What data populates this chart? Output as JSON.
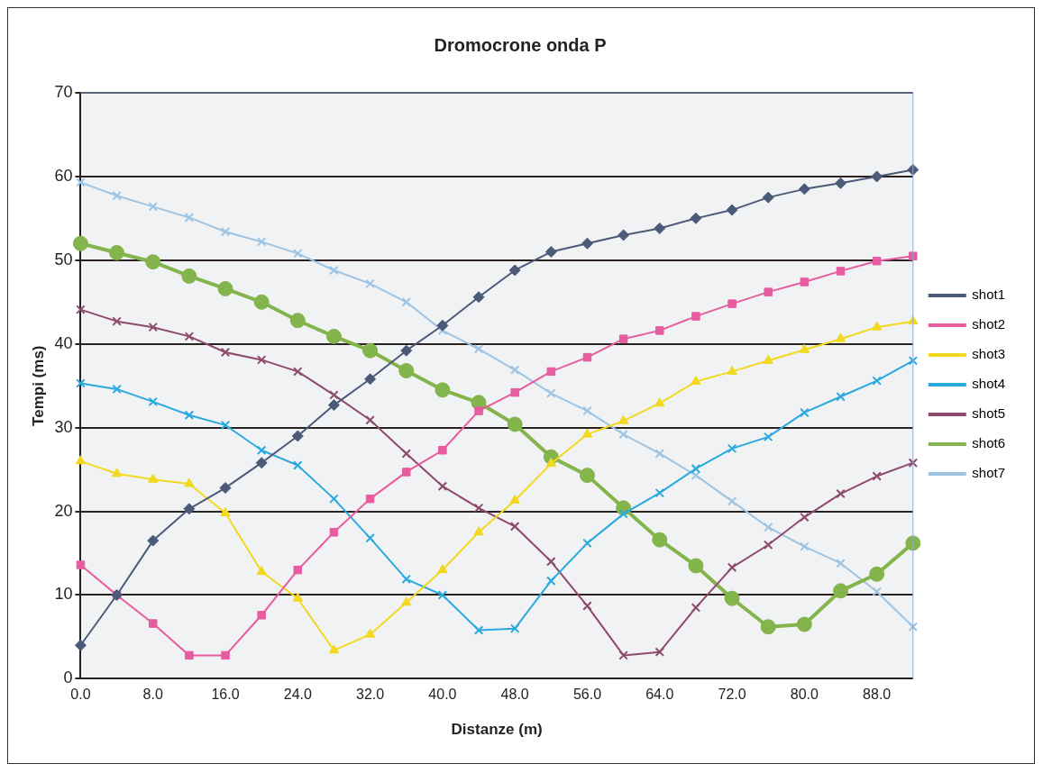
{
  "chart_data": {
    "type": "line",
    "title": "Dromocrone onda P",
    "xlabel": "Distanze (m)",
    "ylabel": "Tempi (ms)",
    "categories": [
      "0.0",
      null,
      "8.0",
      null,
      "16.0",
      null,
      "24.0",
      null,
      "32.0",
      null,
      "40.0",
      null,
      "48.0",
      null,
      "56.0",
      null,
      "64.0",
      null,
      "72.0",
      null,
      "80.0",
      null,
      "88.0",
      null
    ],
    "ylim": [
      0,
      70
    ],
    "yticks": [
      0,
      10,
      20,
      30,
      40,
      50,
      60,
      70
    ],
    "grid": "y",
    "legend": "right",
    "series": [
      {
        "name": "shot1",
        "color": "#4a5a78",
        "marker": "diamond",
        "values": [
          4,
          10,
          16.5,
          20.3,
          22.8,
          25.8,
          29,
          32.7,
          35.8,
          39.2,
          42.2,
          45.6,
          48.8,
          51,
          52,
          53,
          53.8,
          55,
          56,
          57.5,
          58.5,
          59.2,
          60,
          60.8
        ]
      },
      {
        "name": "shot2",
        "color": "#e75b9f",
        "marker": "square",
        "values": [
          13.6,
          10,
          6.6,
          2.8,
          2.8,
          7.6,
          13,
          17.5,
          21.5,
          24.7,
          27.3,
          32,
          34.2,
          36.7,
          38.4,
          40.6,
          41.6,
          43.3,
          44.8,
          46.2,
          47.4,
          48.7,
          49.9,
          50.5
        ]
      },
      {
        "name": "shot3",
        "color": "#f2d81e",
        "marker": "triangle",
        "values": [
          26,
          24.5,
          23.8,
          23.3,
          19.8,
          12.8,
          9.6,
          3.4,
          5.3,
          9.1,
          13,
          17.5,
          21.3,
          25.7,
          29.2,
          30.8,
          32.9,
          35.5,
          36.7,
          38,
          39.3,
          40.6,
          42,
          42.7
        ]
      },
      {
        "name": "shot4",
        "color": "#2aa9df",
        "marker": "cross",
        "values": [
          35.3,
          34.6,
          33.1,
          31.5,
          30.3,
          27.3,
          25.5,
          21.5,
          16.8,
          11.9,
          10,
          5.8,
          6,
          11.7,
          16.2,
          19.7,
          22.2,
          25.1,
          27.5,
          28.9,
          31.8,
          33.7,
          35.6,
          38
        ]
      },
      {
        "name": "shot5",
        "color": "#8e4a6c",
        "marker": "cross",
        "values": [
          44.1,
          42.7,
          42,
          40.9,
          39,
          38.1,
          36.7,
          33.9,
          30.9,
          26.9,
          23,
          20.4,
          18.2,
          14,
          8.7,
          2.8,
          3.2,
          8.5,
          13.3,
          16,
          19.3,
          22.1,
          24.2,
          25.8
        ]
      },
      {
        "name": "shot6",
        "color": "#84b44c",
        "marker": "circle",
        "values": [
          52,
          50.9,
          49.8,
          48.1,
          46.6,
          45,
          42.8,
          40.9,
          39.2,
          36.8,
          34.5,
          33,
          30.4,
          26.5,
          24.3,
          20.4,
          16.6,
          13.5,
          9.6,
          6.2,
          6.5,
          10.5,
          12.5,
          16.2
        ]
      },
      {
        "name": "shot7",
        "color": "#9dc4e3",
        "marker": "cross",
        "values": [
          59.3,
          57.7,
          56.4,
          55.1,
          53.4,
          52.2,
          50.8,
          48.8,
          47.2,
          45,
          41.6,
          39.4,
          36.9,
          34.1,
          32,
          29.2,
          26.9,
          24.3,
          21.2,
          18.1,
          15.8,
          13.8,
          10.4,
          6.2
        ]
      }
    ]
  }
}
